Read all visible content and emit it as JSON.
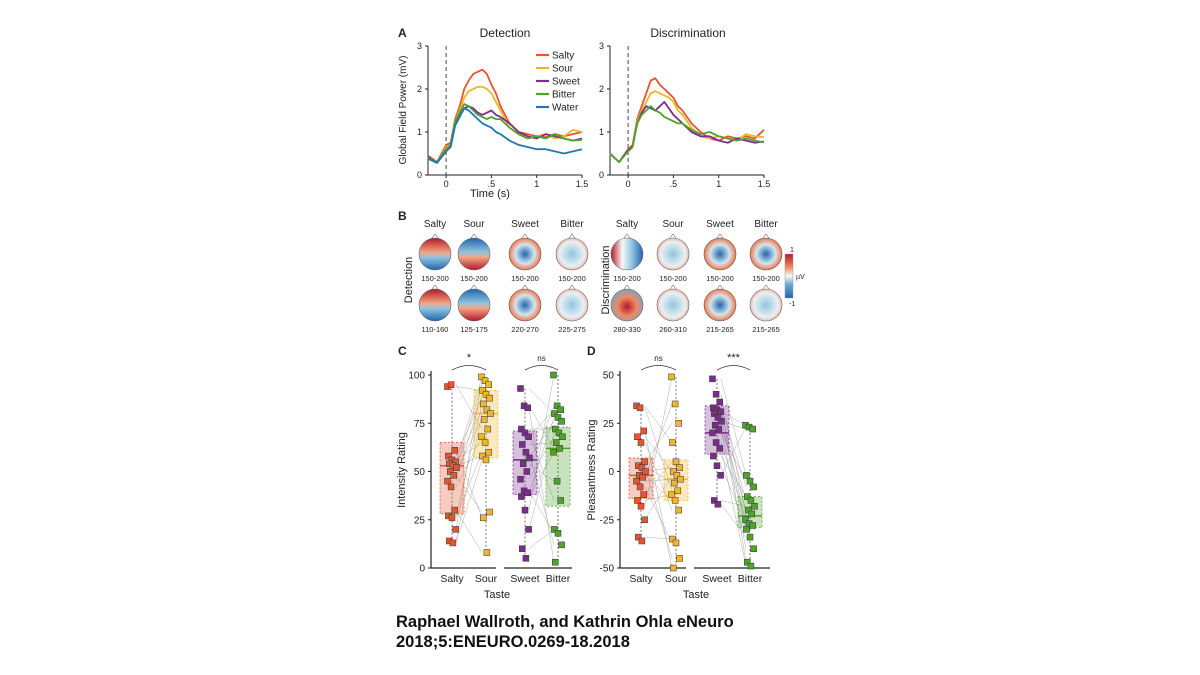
{
  "panelA": {
    "letter": "A",
    "ylabel": "Global Field Power (mV)",
    "xlabel": "Time (s)",
    "xticks": [
      "0",
      ".5",
      "1",
      "1.5"
    ],
    "yticks": [
      "0",
      "1",
      "2",
      "3"
    ],
    "legend": [
      "Salty",
      "Sour",
      "Sweet",
      "Bitter",
      "Water"
    ]
  },
  "panelB": {
    "letter": "B",
    "tastes": [
      "Salty",
      "Sour",
      "Sweet",
      "Bitter"
    ],
    "groups": [
      {
        "label": "Detection",
        "row1": [
          "150-200",
          "150-200",
          "150-200",
          "150-200"
        ],
        "row2": [
          "110-160",
          "125-175",
          "220-270",
          "225-275"
        ]
      },
      {
        "label": "Discrimination",
        "row1": [
          "150-200",
          "150-200",
          "150-200",
          "150-200"
        ],
        "row2": [
          "280-330",
          "260-310",
          "215-265",
          "215-265"
        ]
      }
    ],
    "colorbar": {
      "max": "1",
      "unit": "µV",
      "min": "-1"
    }
  },
  "panelC": {
    "letter": "C",
    "ylabel": "Intensity Rating",
    "yticks": [
      "0",
      "25",
      "50",
      "75",
      "100"
    ],
    "sig": [
      "*",
      "ns"
    ]
  },
  "panelD": {
    "letter": "D",
    "ylabel": "Pleasantness Rating",
    "yticks": [
      "-50",
      "-25",
      "0",
      "25",
      "50"
    ],
    "sig": [
      "ns",
      "***"
    ]
  },
  "taste_label": "Taste",
  "colors": {
    "salty": "#e4572e",
    "sour": "#f0b62b",
    "sweet": "#7b2d8e",
    "bitter": "#4fa32a",
    "water": "#1f77b4"
  },
  "chart_data": [
    {
      "type": "line",
      "title": "Detection",
      "xlabel": "Time (s)",
      "ylabel": "Global Field Power (mV)",
      "xlim": [
        -0.2,
        1.5
      ],
      "ylim": [
        0,
        3
      ],
      "event_marker_x": 0,
      "legend_position": "top-right",
      "x": [
        -0.2,
        -0.1,
        0,
        0.05,
        0.1,
        0.15,
        0.2,
        0.25,
        0.3,
        0.35,
        0.4,
        0.45,
        0.5,
        0.55,
        0.6,
        0.7,
        0.8,
        0.9,
        1.0,
        1.1,
        1.2,
        1.3,
        1.4,
        1.5
      ],
      "series": [
        {
          "name": "Salty",
          "values": [
            0.45,
            0.3,
            0.7,
            0.75,
            1.3,
            1.6,
            2.0,
            2.2,
            2.35,
            2.4,
            2.45,
            2.35,
            2.1,
            1.9,
            1.6,
            1.2,
            1.0,
            0.95,
            0.9,
            0.88,
            0.95,
            0.9,
            0.95,
            1.0
          ]
        },
        {
          "name": "Sour",
          "values": [
            0.4,
            0.28,
            0.65,
            0.7,
            1.25,
            1.5,
            1.8,
            1.95,
            2.0,
            2.05,
            2.05,
            2.0,
            1.9,
            1.7,
            1.5,
            1.1,
            0.95,
            0.85,
            0.9,
            0.95,
            0.85,
            0.9,
            1.05,
            1.0
          ]
        },
        {
          "name": "Sweet",
          "values": [
            0.42,
            0.3,
            0.6,
            0.7,
            1.2,
            1.4,
            1.55,
            1.6,
            1.55,
            1.45,
            1.4,
            1.45,
            1.5,
            1.4,
            1.35,
            1.2,
            1.0,
            0.9,
            0.85,
            0.95,
            0.9,
            0.85,
            0.8,
            0.85
          ]
        },
        {
          "name": "Bitter",
          "values": [
            0.4,
            0.3,
            0.6,
            0.7,
            1.25,
            1.45,
            1.65,
            1.6,
            1.5,
            1.4,
            1.35,
            1.3,
            1.35,
            1.3,
            1.3,
            1.1,
            0.95,
            0.85,
            0.9,
            0.85,
            0.95,
            0.85,
            0.8,
            0.82
          ]
        },
        {
          "name": "Water",
          "values": [
            0.38,
            0.28,
            0.55,
            0.65,
            1.15,
            1.35,
            1.55,
            1.5,
            1.4,
            1.3,
            1.2,
            1.15,
            1.1,
            1.0,
            0.95,
            0.8,
            0.7,
            0.65,
            0.6,
            0.6,
            0.55,
            0.5,
            0.55,
            0.6
          ]
        }
      ]
    },
    {
      "type": "line",
      "title": "Discrimination",
      "xlabel": "",
      "ylabel": "",
      "xlim": [
        -0.2,
        1.5
      ],
      "ylim": [
        0,
        3
      ],
      "event_marker_x": 0,
      "x": [
        -0.2,
        -0.1,
        0,
        0.05,
        0.1,
        0.15,
        0.2,
        0.25,
        0.3,
        0.35,
        0.4,
        0.45,
        0.5,
        0.55,
        0.6,
        0.7,
        0.8,
        0.9,
        1.0,
        1.1,
        1.2,
        1.3,
        1.4,
        1.5
      ],
      "series": [
        {
          "name": "Salty",
          "values": [
            0.5,
            0.3,
            0.6,
            0.7,
            1.3,
            1.6,
            1.9,
            2.2,
            2.25,
            2.1,
            2.0,
            1.9,
            1.8,
            1.6,
            1.5,
            1.2,
            1.0,
            0.85,
            0.8,
            0.9,
            0.85,
            0.9,
            0.85,
            1.05
          ]
        },
        {
          "name": "Sour",
          "values": [
            0.48,
            0.3,
            0.58,
            0.7,
            1.25,
            1.5,
            1.7,
            1.9,
            1.95,
            1.9,
            1.85,
            1.8,
            1.7,
            1.5,
            1.4,
            1.1,
            0.9,
            0.85,
            0.9,
            0.85,
            0.8,
            0.95,
            0.9,
            0.88
          ]
        },
        {
          "name": "Sweet",
          "values": [
            0.5,
            0.3,
            0.58,
            0.68,
            1.2,
            1.45,
            1.6,
            1.55,
            1.5,
            1.6,
            1.7,
            1.55,
            1.4,
            1.3,
            1.2,
            1.0,
            0.9,
            0.9,
            0.8,
            0.75,
            0.85,
            0.8,
            0.75,
            0.78
          ]
        },
        {
          "name": "Bitter",
          "values": [
            0.5,
            0.3,
            0.55,
            0.65,
            1.2,
            1.4,
            1.5,
            1.6,
            1.5,
            1.45,
            1.35,
            1.3,
            1.25,
            1.2,
            1.2,
            1.05,
            0.95,
            1.0,
            0.9,
            0.85,
            0.8,
            0.85,
            0.8,
            0.76
          ]
        }
      ]
    },
    {
      "type": "box",
      "title": "",
      "ylabel": "Intensity Rating",
      "xlabel": "Taste",
      "ylim": [
        0,
        100
      ],
      "categories": [
        "Salty",
        "Sour",
        "Sweet",
        "Bitter"
      ],
      "boxes": [
        {
          "name": "Salty",
          "q1": 28,
          "median": 53,
          "q3": 65
        },
        {
          "name": "Sour",
          "q1": 57,
          "median": 80,
          "q3": 92
        },
        {
          "name": "Sweet",
          "q1": 38,
          "median": 56,
          "q3": 71
        },
        {
          "name": "Bitter",
          "q1": 32,
          "median": 62,
          "q3": 73
        }
      ],
      "points": {
        "Salty": [
          94,
          95,
          61,
          58,
          56,
          55,
          54,
          53,
          52,
          50,
          48,
          45,
          42,
          30,
          27,
          26,
          20,
          14,
          13
        ],
        "Sour": [
          99,
          97,
          95,
          92,
          90,
          88,
          85,
          82,
          80,
          77,
          72,
          68,
          65,
          60,
          58,
          56,
          29,
          26,
          8
        ],
        "Sweet": [
          93,
          84,
          83,
          72,
          70,
          68,
          64,
          60,
          57,
          54,
          50,
          46,
          40,
          39,
          37,
          30,
          20,
          10,
          5
        ],
        "Bitter": [
          100,
          84,
          82,
          80,
          78,
          76,
          72,
          70,
          68,
          65,
          62,
          60,
          45,
          35,
          20,
          18,
          12,
          3
        ]
      },
      "annotations": [
        "*",
        "ns"
      ]
    },
    {
      "type": "box",
      "title": "",
      "ylabel": "Pleasantness Rating",
      "xlabel": "Taste",
      "ylim": [
        -50,
        50
      ],
      "categories": [
        "Salty",
        "Sour",
        "Sweet",
        "Bitter"
      ],
      "boxes": [
        {
          "name": "Salty",
          "q1": -14,
          "median": -2,
          "q3": 7
        },
        {
          "name": "Sour",
          "q1": -15,
          "median": -4,
          "q3": 6
        },
        {
          "name": "Sweet",
          "q1": 9,
          "median": 20,
          "q3": 34
        },
        {
          "name": "Bitter",
          "q1": -29,
          "median": -23,
          "q3": -13
        }
      ],
      "points": {
        "Salty": [
          34,
          33,
          21,
          18,
          15,
          5,
          3,
          2,
          0,
          -2,
          -3,
          -5,
          -8,
          -12,
          -15,
          -18,
          -25,
          -34,
          -36
        ],
        "Sour": [
          49,
          35,
          25,
          15,
          5,
          2,
          0,
          -2,
          -4,
          -6,
          -10,
          -12,
          -15,
          -20,
          -35,
          -37,
          -45,
          -50
        ],
        "Sweet": [
          48,
          40,
          36,
          33,
          32,
          31,
          30,
          28,
          26,
          24,
          22,
          20,
          15,
          12,
          8,
          3,
          -2,
          -15,
          -17
        ],
        "Bitter": [
          24,
          23,
          22,
          -2,
          -5,
          -8,
          -13,
          -15,
          -18,
          -20,
          -22,
          -25,
          -27,
          -28,
          -30,
          -34,
          -40,
          -47,
          -49
        ]
      },
      "annotations": [
        "ns",
        "***"
      ]
    }
  ],
  "credit": {
    "line1": "Raphael Wallroth, and Kathrin Ohla eNeuro",
    "line2": "2018;5:ENEURO.0269-18.2018"
  }
}
